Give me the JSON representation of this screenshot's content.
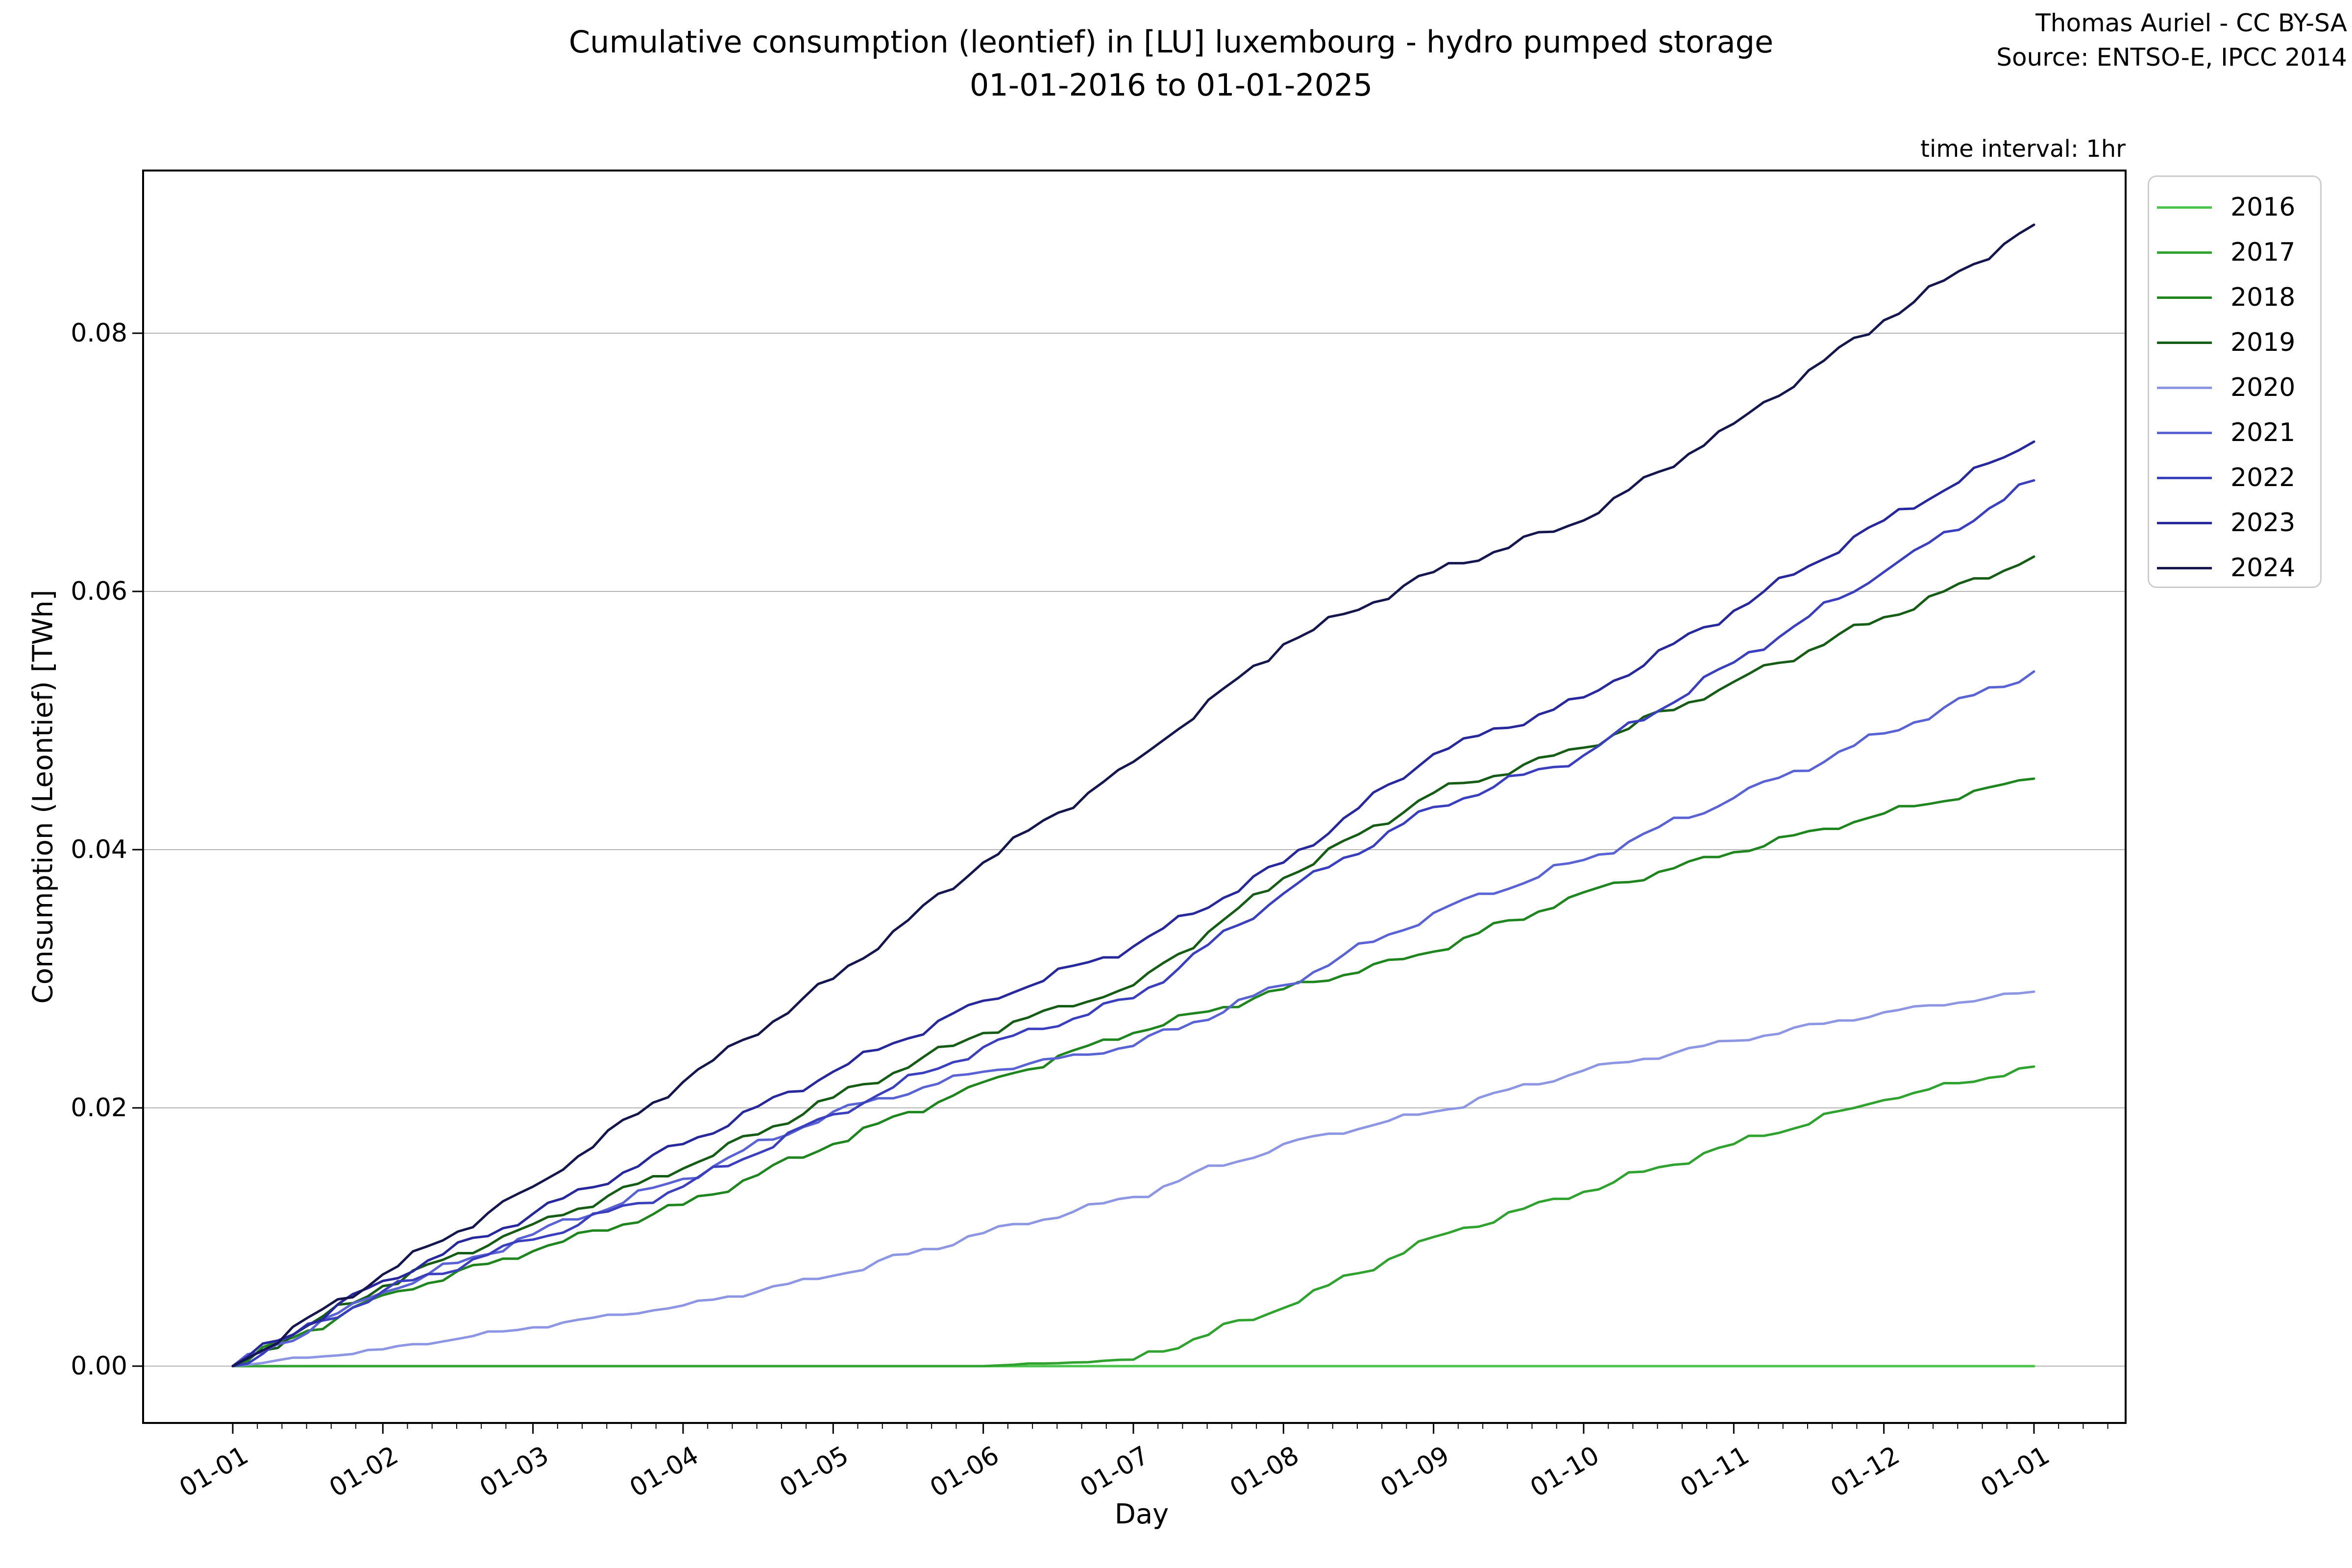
{
  "header": {
    "title_line1": "Cumulative consumption (leontief) in [LU] luxembourg - hydro pumped storage",
    "title_line2": "01-01-2016 to 01-01-2025",
    "credit_line1": "Thomas Auriel - CC BY-SA",
    "credit_line2": "Source: ENTSO-E, IPCC 2014",
    "time_interval_note": "time interval: 1hr"
  },
  "chart_data": {
    "type": "line",
    "title": "Cumulative consumption (leontief) in [LU] luxembourg - hydro pumped storage 01-01-2016 to 01-01-2025",
    "xlabel": "Day",
    "ylabel": "Consumption (Leontief) [TWh]",
    "legend_position": "upper-right-outside",
    "grid": "horizontal-only",
    "grid_color": "#b4b4b4",
    "axis_color": "#000000",
    "background_color": "#ffffff",
    "x_axis_unit": "month-of-year, Jan 1 to Jan 1 next year",
    "x_months": [
      0,
      1,
      2,
      3,
      4,
      5,
      6,
      7,
      8,
      9,
      10,
      11,
      12
    ],
    "x_tick_labels": [
      "01-01",
      "01-02",
      "01-03",
      "01-04",
      "01-05",
      "01-06",
      "01-07",
      "01-08",
      "01-09",
      "01-10",
      "01-11",
      "01-12",
      "01-01"
    ],
    "y_tick_labels": [
      "0.00",
      "0.02",
      "0.04",
      "0.06",
      "0.08"
    ],
    "y_tick_values": [
      0.0,
      0.02,
      0.04,
      0.06,
      0.08
    ],
    "ylim": [
      -0.0044,
      0.0926
    ],
    "series": [
      {
        "name": "2016",
        "color": "#4cc34c",
        "values_twh_by_month": [
          0,
          0,
          0,
          0,
          0,
          0,
          0,
          0,
          0,
          0,
          0,
          0,
          0
        ]
      },
      {
        "name": "2017",
        "color": "#2fa22f",
        "values_twh_by_month": [
          0,
          0,
          0,
          0,
          0,
          0,
          0.0005,
          0.0045,
          0.01,
          0.0135,
          0.0172,
          0.0206,
          0.0232
        ]
      },
      {
        "name": "2018",
        "color": "#1f851f",
        "values_twh_by_month": [
          0,
          0.0055,
          0.0089,
          0.0125,
          0.0172,
          0.022,
          0.0258,
          0.0292,
          0.0321,
          0.0367,
          0.0398,
          0.0428,
          0.0455
        ]
      },
      {
        "name": "2019",
        "color": "#155c15",
        "values_twh_by_month": [
          0,
          0.0062,
          0.011,
          0.0153,
          0.0208,
          0.0258,
          0.0295,
          0.0378,
          0.0444,
          0.0479,
          0.053,
          0.058,
          0.0627
        ]
      },
      {
        "name": "2020",
        "color": "#8d96e3",
        "values_twh_by_month": [
          0,
          0.0013,
          0.003,
          0.0047,
          0.007,
          0.0103,
          0.0131,
          0.0172,
          0.0197,
          0.0229,
          0.0252,
          0.0274,
          0.029
        ]
      },
      {
        "name": "2021",
        "color": "#5a63d3",
        "values_twh_by_month": [
          0,
          0.0057,
          0.0102,
          0.0145,
          0.0197,
          0.0228,
          0.0248,
          0.0295,
          0.0351,
          0.0392,
          0.044,
          0.049,
          0.0538
        ]
      },
      {
        "name": "2022",
        "color": "#3a3fbe",
        "values_twh_by_month": [
          0,
          0.0058,
          0.0098,
          0.0139,
          0.0195,
          0.0247,
          0.0285,
          0.0366,
          0.0433,
          0.0473,
          0.0545,
          0.0615,
          0.0686
        ]
      },
      {
        "name": "2023",
        "color": "#27289b",
        "values_twh_by_month": [
          0,
          0.0066,
          0.0118,
          0.0172,
          0.0228,
          0.0283,
          0.0325,
          0.039,
          0.0474,
          0.0518,
          0.0585,
          0.0655,
          0.0716
        ]
      },
      {
        "name": "2024",
        "color": "#16164f",
        "values_twh_by_month": [
          0,
          0.0071,
          0.0139,
          0.022,
          0.03,
          0.039,
          0.0468,
          0.0559,
          0.0615,
          0.0655,
          0.073,
          0.081,
          0.0884
        ]
      }
    ]
  }
}
